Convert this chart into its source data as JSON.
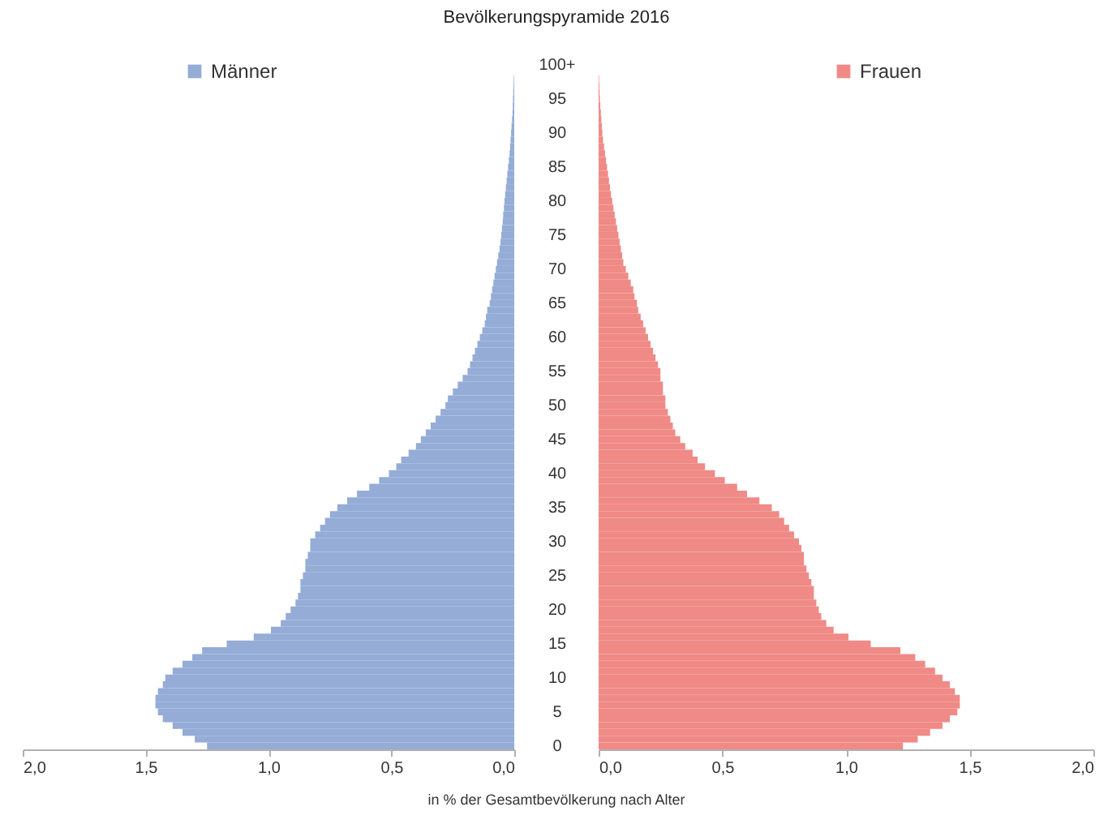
{
  "chart_data": [
    {
      "type": "bar",
      "orientation": "horizontal",
      "title": "Bevölkerungspyramide 2016",
      "xlabel": "in % der Gesamtbevölkerung nach Alter",
      "categories": [
        "100+",
        null,
        null,
        null,
        null,
        "95",
        null,
        null,
        null,
        null,
        "90",
        null,
        null,
        null,
        null,
        "85",
        null,
        null,
        null,
        null,
        "80",
        null,
        null,
        null,
        null,
        "75",
        null,
        null,
        null,
        null,
        "70",
        null,
        null,
        null,
        null,
        "65",
        null,
        null,
        null,
        null,
        "60",
        null,
        null,
        null,
        null,
        "55",
        null,
        null,
        null,
        null,
        "50",
        null,
        null,
        null,
        null,
        "45",
        null,
        null,
        null,
        null,
        "40",
        null,
        null,
        null,
        null,
        "35",
        null,
        null,
        null,
        null,
        "30",
        null,
        null,
        null,
        null,
        "25",
        null,
        null,
        null,
        null,
        "20",
        null,
        null,
        null,
        null,
        "15",
        null,
        null,
        null,
        null,
        "10",
        null,
        null,
        null,
        null,
        "5",
        null,
        null,
        null,
        null,
        "0"
      ],
      "series": [
        {
          "name": "Männer",
          "color": "#94acd6",
          "values": [
            null,
            null,
            0.002,
            0.003,
            0.004,
            0.005,
            0.006,
            0.007,
            0.009,
            0.011,
            0.013,
            0.015,
            0.017,
            0.019,
            0.022,
            0.025,
            0.028,
            0.031,
            0.034,
            0.037,
            0.04,
            0.042,
            0.045,
            0.047,
            0.05,
            0.053,
            0.056,
            0.06,
            0.065,
            0.07,
            0.075,
            0.08,
            0.085,
            0.09,
            0.095,
            0.1,
            0.11,
            0.115,
            0.12,
            0.13,
            0.14,
            0.15,
            0.16,
            0.17,
            0.18,
            0.19,
            0.21,
            0.23,
            0.25,
            0.27,
            0.28,
            0.3,
            0.32,
            0.34,
            0.36,
            0.38,
            0.4,
            0.43,
            0.46,
            0.48,
            0.51,
            0.55,
            0.59,
            0.64,
            0.68,
            0.72,
            0.75,
            0.77,
            0.79,
            0.81,
            0.83,
            0.83,
            0.84,
            0.85,
            0.85,
            0.86,
            0.87,
            0.87,
            0.88,
            0.89,
            0.91,
            0.93,
            0.95,
            0.99,
            1.06,
            1.17,
            1.27,
            1.31,
            1.35,
            1.39,
            1.42,
            1.43,
            1.45,
            1.46,
            1.46,
            1.45,
            1.43,
            1.39,
            1.35,
            1.3,
            1.25
          ]
        }
      ],
      "xlim": [
        2,
        0
      ],
      "xticks": [
        {
          "value": 2,
          "label": "2,0"
        },
        {
          "value": 1.5,
          "label": "1,5"
        },
        {
          "value": 1,
          "label": "1,0"
        },
        {
          "value": 0.5,
          "label": "0,5"
        },
        {
          "value": 0,
          "label": "0,0"
        }
      ],
      "legend": "top left"
    },
    {
      "type": "bar",
      "orientation": "horizontal",
      "categories": [
        "100+",
        null,
        null,
        null,
        null,
        "95",
        null,
        null,
        null,
        null,
        "90",
        null,
        null,
        null,
        null,
        "85",
        null,
        null,
        null,
        null,
        "80",
        null,
        null,
        null,
        null,
        "75",
        null,
        null,
        null,
        null,
        "70",
        null,
        null,
        null,
        null,
        "65",
        null,
        null,
        null,
        null,
        "60",
        null,
        null,
        null,
        null,
        "55",
        null,
        null,
        null,
        null,
        "50",
        null,
        null,
        null,
        null,
        "45",
        null,
        null,
        null,
        null,
        "40",
        null,
        null,
        null,
        null,
        "35",
        null,
        null,
        null,
        null,
        "30",
        null,
        null,
        null,
        null,
        "25",
        null,
        null,
        null,
        null,
        "20",
        null,
        null,
        null,
        null,
        "15",
        null,
        null,
        null,
        null,
        "10",
        null,
        null,
        null,
        null,
        "5",
        null,
        null,
        null,
        null,
        "0"
      ],
      "series": [
        {
          "name": "Frauen",
          "color": "#ef8a86",
          "values": [
            null,
            null,
            0.002,
            0.003,
            0.004,
            0.005,
            0.007,
            0.009,
            0.011,
            0.013,
            0.015,
            0.018,
            0.022,
            0.026,
            0.03,
            0.034,
            0.038,
            0.042,
            0.046,
            0.05,
            0.055,
            0.06,
            0.065,
            0.07,
            0.075,
            0.08,
            0.085,
            0.09,
            0.095,
            0.1,
            0.11,
            0.12,
            0.13,
            0.14,
            0.145,
            0.155,
            0.16,
            0.17,
            0.18,
            0.19,
            0.2,
            0.21,
            0.22,
            0.23,
            0.24,
            0.25,
            0.25,
            0.26,
            0.26,
            0.27,
            0.27,
            0.28,
            0.29,
            0.3,
            0.31,
            0.33,
            0.35,
            0.38,
            0.4,
            0.43,
            0.47,
            0.51,
            0.56,
            0.6,
            0.65,
            0.7,
            0.73,
            0.75,
            0.77,
            0.79,
            0.81,
            0.82,
            0.83,
            0.83,
            0.84,
            0.85,
            0.86,
            0.87,
            0.87,
            0.88,
            0.89,
            0.9,
            0.92,
            0.95,
            1.01,
            1.1,
            1.22,
            1.28,
            1.32,
            1.36,
            1.39,
            1.42,
            1.44,
            1.46,
            1.46,
            1.45,
            1.42,
            1.39,
            1.34,
            1.29,
            1.23
          ]
        }
      ],
      "xlim": [
        0,
        2
      ],
      "xticks": [
        {
          "value": 0,
          "label": "0,0"
        },
        {
          "value": 0.5,
          "label": "0,5"
        },
        {
          "value": 1,
          "label": "1,0"
        },
        {
          "value": 1.5,
          "label": "1,5"
        },
        {
          "value": 2,
          "label": "2,0"
        }
      ],
      "tick_labels": "x",
      "legend": "top"
    }
  ]
}
